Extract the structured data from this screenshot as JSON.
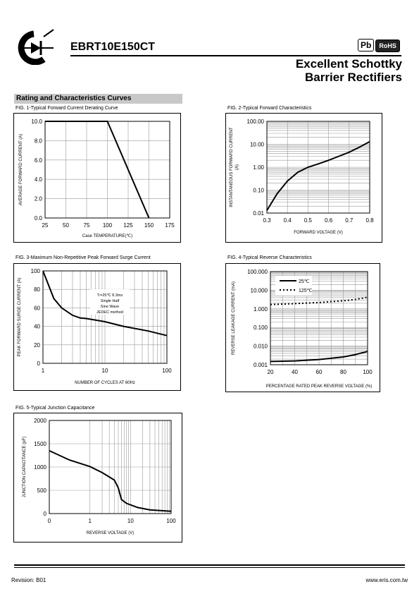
{
  "header": {
    "part_number": "EBRT10E150CT",
    "badge_pb": "Pb",
    "badge_rohs": "RoHS",
    "title_line1": "Excellent Schottky",
    "title_line2": "Barrier Rectifiers"
  },
  "section_title": "Rating and Characteristics Curves",
  "figures": {
    "fig1": {
      "caption": "FIG. 1-Typical Forward Current Derating Curve",
      "ylabel": "AVERAGE FORWARD CURRENT (A)",
      "xlabel": "Case TEMPERATURE(℃)",
      "xticks": [
        "25",
        "50",
        "75",
        "100",
        "125",
        "150",
        "175"
      ],
      "yticks": [
        "0.0",
        "2.0",
        "4.0",
        "6.0",
        "8.0",
        "10.0"
      ]
    },
    "fig2": {
      "caption": "FIG. 2-Typical Forward Characteristics",
      "ylabel": "INSTANTANEOUS FORWARD CURRENT",
      "ylabel2": "(A)",
      "xlabel": "FORWARD VOLTAGE (V)",
      "xticks": [
        "0.3",
        "0.4",
        "0.5",
        "0.6",
        "0.7",
        "0.8"
      ],
      "yticks": [
        "0.01",
        "0.10",
        "1.00",
        "10.00",
        "100.00"
      ]
    },
    "fig3": {
      "caption": "FIG. 3-Maximum Non-Repetitive Peak Forward Surge Current",
      "ylabel": "PEAK FORWARD SURGE CURRENT (A)",
      "xlabel": "NUMBER OF CYCLES AT 60Hz",
      "xticks": [
        "1",
        "10",
        "100"
      ],
      "yticks": [
        "0",
        "20",
        "40",
        "60",
        "80",
        "100"
      ],
      "note": [
        "Tₗ=25℃  8.3ms",
        "Single Half",
        "Sine Wave",
        "JEDEC method"
      ]
    },
    "fig4": {
      "caption": "FIG. 4-Typical Reverse Characteristics",
      "ylabel": "REVERSE LEAKAGE CURRENT (mA)",
      "xlabel": "PERCENTAGE RATED PEAK REVERSE VOLTAGE (%)",
      "xticks": [
        "20",
        "40",
        "60",
        "80",
        "100"
      ],
      "yticks": [
        "0.001",
        "0.010",
        "0.100",
        "1.000",
        "10.000",
        "100.000"
      ],
      "legend": [
        "25℃",
        "125℃"
      ]
    },
    "fig5": {
      "caption": "FIG. 5-Typical Junction Capacitance",
      "ylabel": "JUNCTION CAPACITANCE (pF)",
      "xlabel": "REVERSE VOLTAGE (V)",
      "xticks": [
        "0",
        "1",
        "10",
        "100"
      ],
      "yticks": [
        "0",
        "500",
        "1000",
        "1500",
        "2000"
      ]
    }
  },
  "chart_data": [
    {
      "type": "line",
      "xlim": [
        25,
        175
      ],
      "ylim": [
        0,
        10
      ],
      "series": [
        {
          "values": [
            [
              25,
              10
            ],
            [
              100,
              10
            ],
            [
              150,
              0
            ]
          ]
        }
      ]
    },
    {
      "type": "line",
      "yscale": "log",
      "xlim": [
        0.3,
        0.8
      ],
      "ylim": [
        0.01,
        100
      ],
      "series": [
        {
          "values": [
            [
              0.3,
              0.013
            ],
            [
              0.35,
              0.07
            ],
            [
              0.4,
              0.25
            ],
            [
              0.45,
              0.6
            ],
            [
              0.5,
              1.0
            ],
            [
              0.55,
              1.4
            ],
            [
              0.6,
              2.0
            ],
            [
              0.65,
              3.0
            ],
            [
              0.7,
              4.5
            ],
            [
              0.75,
              7.5
            ],
            [
              0.8,
              13
            ]
          ]
        }
      ]
    },
    {
      "type": "line",
      "xscale": "log",
      "xlim": [
        1,
        100
      ],
      "ylim": [
        0,
        100
      ],
      "series": [
        {
          "values": [
            [
              1,
              100
            ],
            [
              1.5,
              70
            ],
            [
              2,
              60
            ],
            [
              3,
              52
            ],
            [
              4,
              49
            ],
            [
              5,
              48.5
            ],
            [
              10,
              45
            ],
            [
              20,
              40
            ],
            [
              50,
              35
            ],
            [
              100,
              30
            ]
          ]
        }
      ]
    },
    {
      "type": "line",
      "yscale": "log",
      "xlim": [
        20,
        100
      ],
      "ylim": [
        0.001,
        100
      ],
      "series": [
        {
          "name": "25℃",
          "values": [
            [
              20,
              0.0015
            ],
            [
              40,
              0.0016
            ],
            [
              60,
              0.0019
            ],
            [
              80,
              0.0026
            ],
            [
              90,
              0.0035
            ],
            [
              100,
              0.0052
            ]
          ]
        },
        {
          "name": "125℃",
          "values": [
            [
              20,
              1.7
            ],
            [
              40,
              1.9
            ],
            [
              60,
              2.2
            ],
            [
              80,
              2.7
            ],
            [
              90,
              3.2
            ],
            [
              100,
              4.2
            ]
          ]
        }
      ]
    },
    {
      "type": "line",
      "xscale": "symlog",
      "xlim": [
        0,
        100
      ],
      "ylim": [
        0,
        2000
      ],
      "series": [
        {
          "values": [
            [
              0,
              1350
            ],
            [
              0.5,
              1150
            ],
            [
              1,
              1010
            ],
            [
              2,
              880
            ],
            [
              4,
              720
            ],
            [
              5,
              550
            ],
            [
              6,
              300
            ],
            [
              8,
              220
            ],
            [
              15,
              130
            ],
            [
              30,
              80
            ],
            [
              100,
              50
            ]
          ]
        }
      ]
    }
  ],
  "footer": {
    "revision": "Revision: B01",
    "url": "www.eris.com.tw"
  }
}
